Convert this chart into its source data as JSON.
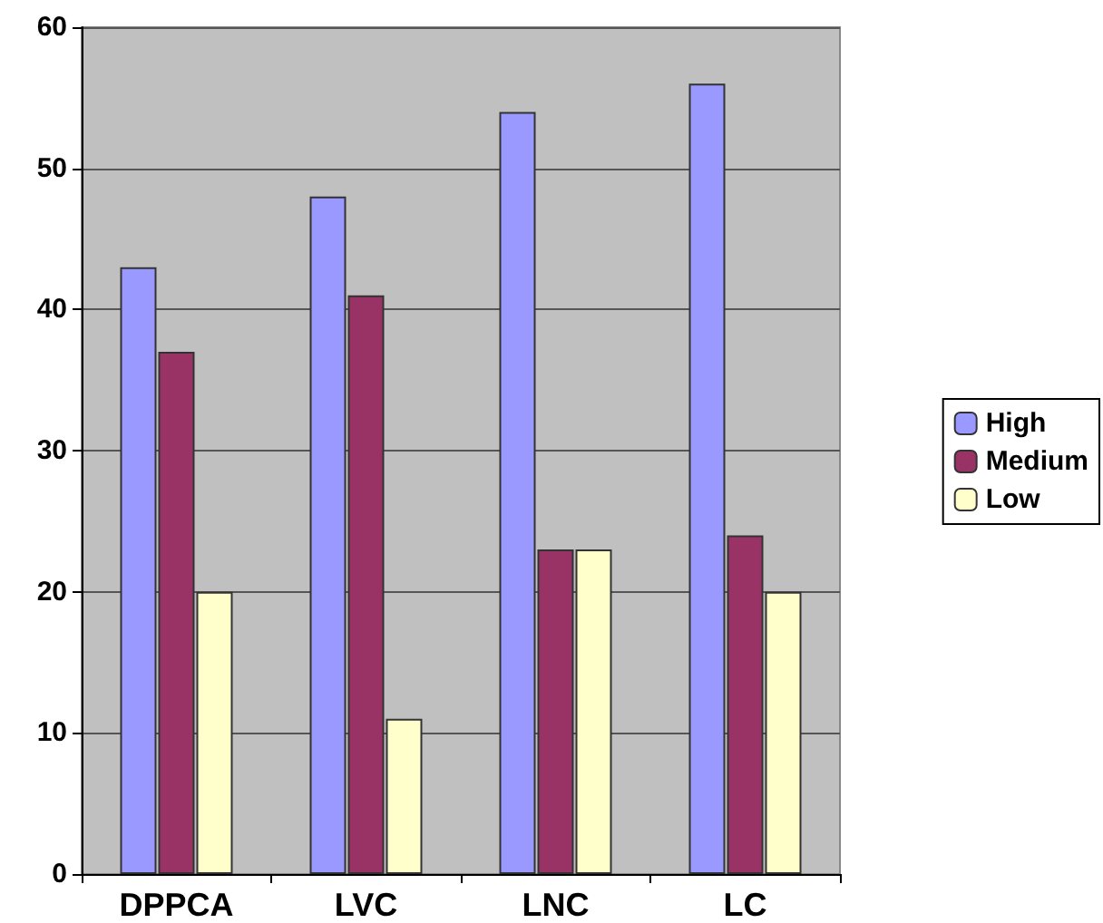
{
  "chart_data": {
    "type": "bar",
    "categories": [
      "DPPCA",
      "LVC",
      "LNC",
      "LC"
    ],
    "series": [
      {
        "name": "High",
        "color": "#9999ff",
        "values": [
          43,
          48,
          54,
          56
        ]
      },
      {
        "name": "Medium",
        "color": "#993366",
        "values": [
          37,
          41,
          23,
          24
        ]
      },
      {
        "name": "Low",
        "color": "#ffffcc",
        "values": [
          20,
          11,
          23,
          20
        ]
      }
    ],
    "ylim": [
      0,
      60
    ],
    "yticks": [
      0,
      10,
      20,
      30,
      40,
      50,
      60
    ],
    "grid": "y",
    "legend": "right"
  }
}
